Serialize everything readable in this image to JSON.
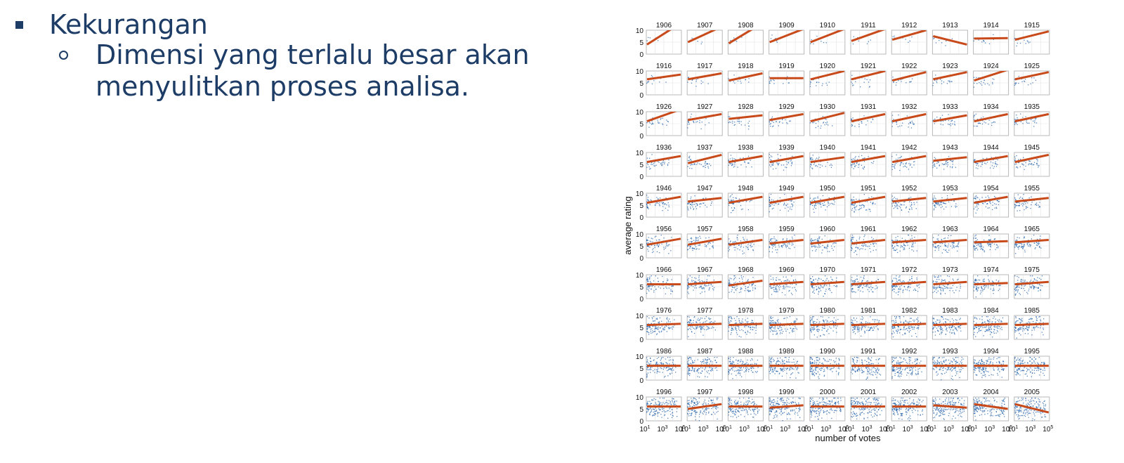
{
  "slide": {
    "bullet_title": "Kekurangan",
    "sub_bullets": [
      {
        "line1": "Dimensi yang terlalu besar akan",
        "line2": "menyulitkan proses analisa."
      }
    ]
  },
  "chart_data": {
    "type": "scatter",
    "layout": "small-multiples",
    "panel_titles": [
      "1906",
      "1907",
      "1908",
      "1909",
      "1910",
      "1911",
      "1912",
      "1913",
      "1914",
      "1915",
      "1916",
      "1917",
      "1918",
      "1919",
      "1920",
      "1921",
      "1922",
      "1923",
      "1924",
      "1925",
      "1926",
      "1927",
      "1928",
      "1929",
      "1930",
      "1931",
      "1932",
      "1933",
      "1934",
      "1935",
      "1936",
      "1937",
      "1938",
      "1939",
      "1940",
      "1941",
      "1942",
      "1943",
      "1944",
      "1945",
      "1946",
      "1947",
      "1948",
      "1949",
      "1950",
      "1951",
      "1952",
      "1953",
      "1954",
      "1955",
      "1956",
      "1957",
      "1958",
      "1959",
      "1960",
      "1961",
      "1962",
      "1963",
      "1964",
      "1965",
      "1966",
      "1967",
      "1968",
      "1969",
      "1970",
      "1971",
      "1972",
      "1973",
      "1974",
      "1975",
      "1976",
      "1977",
      "1978",
      "1979",
      "1980",
      "1981",
      "1982",
      "1983",
      "1984",
      "1985",
      "1986",
      "1987",
      "1988",
      "1989",
      "1990",
      "1991",
      "1992",
      "1993",
      "1994",
      "1995",
      "1996",
      "1997",
      "1998",
      "1999",
      "2000",
      "2001",
      "2002",
      "2003",
      "2004",
      "2005"
    ],
    "xlabel": "number of votes",
    "ylabel": "average rating",
    "x_scale": "log",
    "x_ticks_exponent": [
      "1",
      "3",
      "5"
    ],
    "x_tick_base": "10",
    "y_ticks": [
      "10",
      "5",
      "0"
    ],
    "ylim": [
      0,
      10
    ],
    "xlim_log10": [
      1,
      5
    ],
    "grid": true,
    "colors": {
      "points": "#1f5fa8",
      "fit_line": "#c84a1a"
    },
    "fit_lines": [
      [
        4,
        13
      ],
      [
        5,
        11.5
      ],
      [
        4.5,
        13
      ],
      [
        5,
        10.5
      ],
      [
        5,
        10.5
      ],
      [
        5.5,
        10.5
      ],
      [
        6,
        10
      ],
      [
        7.5,
        4
      ],
      [
        6.5,
        6.7
      ],
      [
        6,
        9.5
      ],
      [
        6.5,
        8.5
      ],
      [
        6.5,
        9
      ],
      [
        6,
        9
      ],
      [
        7,
        7
      ],
      [
        6.5,
        10
      ],
      [
        6.5,
        10
      ],
      [
        6,
        9.5
      ],
      [
        6.5,
        9.5
      ],
      [
        6,
        10.5
      ],
      [
        6.5,
        9.5
      ],
      [
        6,
        11
      ],
      [
        6.5,
        9
      ],
      [
        7,
        8.5
      ],
      [
        6.5,
        9
      ],
      [
        6,
        9.5
      ],
      [
        6,
        9
      ],
      [
        6,
        9
      ],
      [
        6,
        8.5
      ],
      [
        6,
        9
      ],
      [
        6,
        9
      ],
      [
        6,
        8.5
      ],
      [
        5.5,
        9
      ],
      [
        6,
        8.5
      ],
      [
        6,
        8.5
      ],
      [
        6,
        8
      ],
      [
        6,
        8.5
      ],
      [
        6,
        8.5
      ],
      [
        6.5,
        8
      ],
      [
        6,
        8.5
      ],
      [
        6,
        9
      ],
      [
        6,
        8.5
      ],
      [
        6.5,
        8
      ],
      [
        6,
        8.5
      ],
      [
        6,
        8.5
      ],
      [
        6,
        8.5
      ],
      [
        6,
        8.5
      ],
      [
        6.5,
        8
      ],
      [
        6.5,
        8
      ],
      [
        6,
        8.5
      ],
      [
        6.5,
        8
      ],
      [
        5.5,
        8
      ],
      [
        5.5,
        8
      ],
      [
        5.5,
        7.5
      ],
      [
        6,
        7.5
      ],
      [
        6,
        7.5
      ],
      [
        6,
        7.5
      ],
      [
        6.5,
        7.5
      ],
      [
        6.5,
        7.5
      ],
      [
        6.5,
        7
      ],
      [
        6.5,
        7.5
      ],
      [
        6,
        6
      ],
      [
        6,
        7
      ],
      [
        5.5,
        7.5
      ],
      [
        6,
        7
      ],
      [
        6,
        7
      ],
      [
        6,
        7
      ],
      [
        6,
        7
      ],
      [
        6,
        7
      ],
      [
        6,
        6.5
      ],
      [
        6,
        7
      ],
      [
        6,
        6.5
      ],
      [
        6,
        6.5
      ],
      [
        6,
        6.5
      ],
      [
        6,
        6.5
      ],
      [
        6,
        6.5
      ],
      [
        6,
        6.5
      ],
      [
        6,
        6.5
      ],
      [
        6,
        6.5
      ],
      [
        6,
        6.5
      ],
      [
        6,
        6.5
      ],
      [
        6,
        6
      ],
      [
        6,
        6
      ],
      [
        6,
        6
      ],
      [
        6,
        6
      ],
      [
        6,
        6
      ],
      [
        6,
        6
      ],
      [
        6,
        6
      ],
      [
        6,
        6
      ],
      [
        6,
        6
      ],
      [
        6,
        6
      ],
      [
        6,
        6
      ],
      [
        5,
        7
      ],
      [
        6,
        6
      ],
      [
        5.5,
        6.5
      ],
      [
        6,
        6
      ],
      [
        6,
        6
      ],
      [
        6,
        6
      ],
      [
        6.5,
        5.5
      ],
      [
        7,
        5
      ],
      [
        7,
        3.5
      ]
    ]
  }
}
